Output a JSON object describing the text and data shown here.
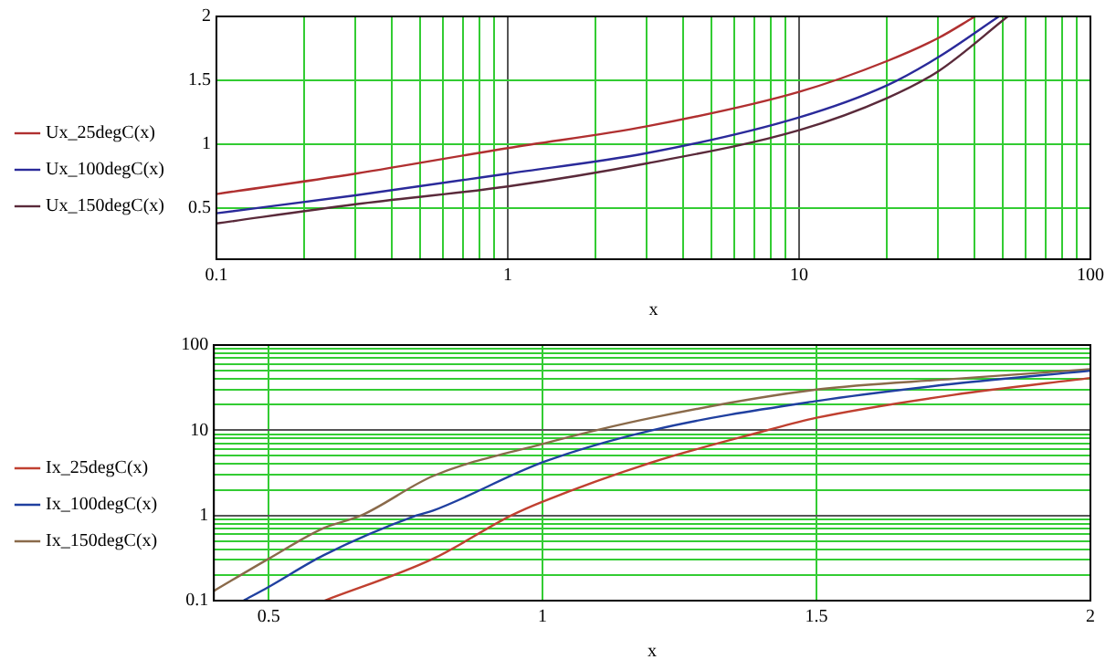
{
  "chart_data": [
    {
      "type": "line",
      "xlabel": "x",
      "log": "x",
      "grid": true,
      "legend": "left",
      "marker": "none",
      "line_style": "solid",
      "xlim": [
        0.1,
        100
      ],
      "ylim": [
        0.1,
        2
      ],
      "xticks": [
        0.1,
        {
          "value": 0.2,
          "label": null
        },
        {
          "value": 0.3,
          "label": null
        },
        {
          "value": 0.4,
          "label": null
        },
        {
          "value": 0.5,
          "label": null
        },
        {
          "value": 0.6,
          "label": null
        },
        {
          "value": 0.7,
          "label": null
        },
        {
          "value": 0.8,
          "label": null
        },
        {
          "value": 0.9,
          "label": null
        },
        1,
        {
          "value": 2,
          "label": null
        },
        {
          "value": 3,
          "label": null
        },
        {
          "value": 4,
          "label": null
        },
        {
          "value": 5,
          "label": null
        },
        {
          "value": 6,
          "label": null
        },
        {
          "value": 7,
          "label": null
        },
        {
          "value": 8,
          "label": null
        },
        {
          "value": 9,
          "label": null
        },
        10,
        {
          "value": 20,
          "label": null
        },
        {
          "value": 30,
          "label": null
        },
        {
          "value": 40,
          "label": null
        },
        {
          "value": 50,
          "label": null
        },
        {
          "value": 60,
          "label": null
        },
        {
          "value": 70,
          "label": null
        },
        {
          "value": 80,
          "label": null
        },
        {
          "value": 90,
          "label": null
        },
        100
      ],
      "yticks": [
        0.5,
        1,
        1.5,
        2
      ],
      "series": [
        {
          "name": "Ux_25degC(x)",
          "color": "#b03030",
          "x": [
            0.1,
            0.3,
            1,
            3,
            10,
            20,
            30,
            40.2
          ],
          "values": [
            0.61,
            0.77,
            0.97,
            1.14,
            1.41,
            1.65,
            1.83,
            2
          ]
        },
        {
          "name": "Ux_100degC(x)",
          "color": "#2a2a9a",
          "x": [
            0.1,
            0.3,
            1,
            3,
            10,
            20,
            30,
            48.5
          ],
          "values": [
            0.46,
            0.6,
            0.77,
            0.93,
            1.21,
            1.46,
            1.68,
            2
          ]
        },
        {
          "name": "Ux_150degC(x)",
          "color": "#5a2a3a",
          "x": [
            0.1,
            0.3,
            1,
            3,
            10,
            20,
            30,
            52
          ],
          "values": [
            0.38,
            0.53,
            0.67,
            0.85,
            1.11,
            1.36,
            1.57,
            2
          ]
        }
      ]
    },
    {
      "type": "line",
      "xlabel": "x",
      "log": "y",
      "grid": true,
      "legend": "left",
      "marker": "none",
      "line_style": "solid",
      "xlim": [
        0.4,
        2
      ],
      "ylim": [
        0.1,
        100
      ],
      "xticks": [
        0.5,
        1,
        1.5,
        2
      ],
      "yticks": [
        0.1,
        {
          "value": 0.2,
          "label": null
        },
        {
          "value": 0.3,
          "label": null
        },
        {
          "value": 0.4,
          "label": null
        },
        {
          "value": 0.5,
          "label": null
        },
        {
          "value": 0.6,
          "label": null
        },
        {
          "value": 0.7,
          "label": null
        },
        {
          "value": 0.8,
          "label": null
        },
        {
          "value": 0.9,
          "label": null
        },
        1,
        {
          "value": 2,
          "label": null
        },
        {
          "value": 3,
          "label": null
        },
        {
          "value": 4,
          "label": null
        },
        {
          "value": 5,
          "label": null
        },
        {
          "value": 6,
          "label": null
        },
        {
          "value": 7,
          "label": null
        },
        {
          "value": 8,
          "label": null
        },
        {
          "value": 9,
          "label": null
        },
        10,
        {
          "value": 20,
          "label": null
        },
        {
          "value": 30,
          "label": null
        },
        {
          "value": 40,
          "label": null
        },
        {
          "value": 50,
          "label": null
        },
        {
          "value": 60,
          "label": null
        },
        {
          "value": 70,
          "label": null
        },
        {
          "value": 80,
          "label": null
        },
        {
          "value": 90,
          "label": null
        },
        100
      ],
      "series": [
        {
          "name": "Ix_25degC(x)",
          "color": "#c04030",
          "x": [
            0.602,
            0.8,
            0.943,
            1,
            1.2,
            1.4,
            1.5,
            1.75,
            2
          ],
          "values": [
            0.1,
            0.31,
            1,
            1.45,
            4.2,
            9.6,
            14,
            26,
            41
          ]
        },
        {
          "name": "Ix_100degC(x)",
          "color": "#2040a0",
          "x": [
            0.454,
            0.5,
            0.6,
            0.77,
            0.8,
            1,
            1.2,
            1.5,
            1.75,
            2
          ],
          "values": [
            0.1,
            0.145,
            0.34,
            1,
            1.14,
            4.2,
            10,
            22,
            35,
            50
          ]
        },
        {
          "name": "Ix_150degC(x)",
          "color": "#8a6a4a",
          "x": [
            0.4,
            0.5,
            0.6,
            0.669,
            0.8,
            1,
            1.2,
            1.5,
            1.75,
            2
          ],
          "values": [
            0.13,
            0.31,
            0.71,
            1,
            2.9,
            6.9,
            14,
            30,
            40,
            52
          ]
        }
      ]
    }
  ]
}
